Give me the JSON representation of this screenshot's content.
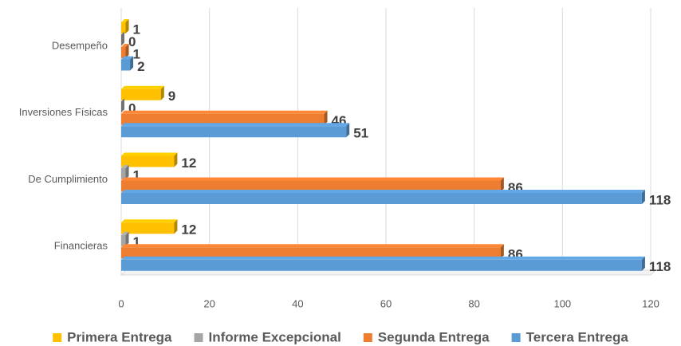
{
  "chart_data": {
    "type": "hbar",
    "categories": [
      "Desempeño",
      "Inversiones Físicas",
      "De Cumplimiento",
      "Financieras"
    ],
    "series": [
      {
        "name": "Primera Entrega",
        "color": "#FFC000",
        "values": [
          1,
          9,
          12,
          12
        ]
      },
      {
        "name": "Informe Excepcional",
        "color": "#A5A5A5",
        "values": [
          0,
          0,
          1,
          1
        ]
      },
      {
        "name": "Segunda Entrega",
        "color": "#ED7D31",
        "values": [
          1,
          46,
          86,
          86
        ]
      },
      {
        "name": "Tercera Entrega",
        "color": "#5B9BD5",
        "values": [
          2,
          51,
          118,
          118
        ]
      }
    ],
    "xlim": [
      0,
      120
    ],
    "xticks": [
      0,
      20,
      40,
      60,
      80,
      100,
      120
    ],
    "grid": true,
    "legend": "bottom"
  }
}
